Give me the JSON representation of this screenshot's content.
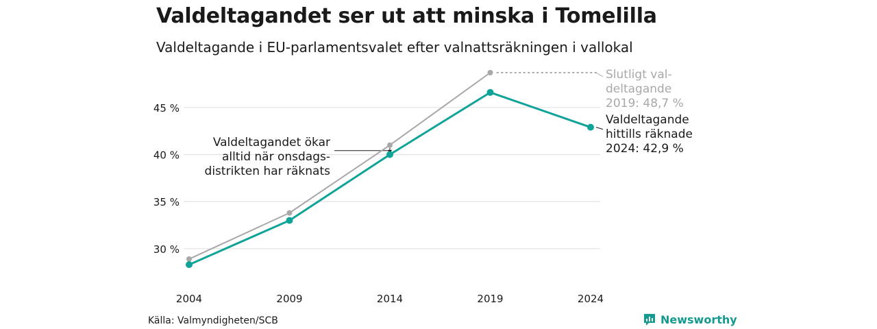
{
  "title": "Valdeltagandet ser ut att minska i Tomelilla",
  "subtitle": "Valdeltagande i EU-parlamentsvalet efter valnattsräkningen i vallokal",
  "source": "Källa: Valmyndigheten/SCB",
  "brand": "Newsworthy",
  "colors": {
    "final": "#a8a8a8",
    "counted": "#10a398",
    "grid": "#e3e3e3",
    "text": "#1a1a1a",
    "annotation_grey": "#a8a8a8"
  },
  "chart_data": {
    "type": "line",
    "x": [
      2004,
      2009,
      2014,
      2019,
      2024
    ],
    "x_tick_labels": [
      "2004",
      "2009",
      "2014",
      "2019",
      "2024"
    ],
    "y_ticks": [
      30,
      35,
      40,
      45
    ],
    "y_tick_labels": [
      "30 %",
      "35 %",
      "40 %",
      "45 %"
    ],
    "ylim": [
      27,
      48.7
    ],
    "grid": true,
    "series": [
      {
        "key": "final",
        "values": [
          28.9,
          33.8,
          41.0,
          48.7,
          null
        ]
      },
      {
        "key": "counted",
        "values": [
          28.3,
          33.0,
          40.0,
          46.6,
          42.9
        ]
      }
    ],
    "annotations": {
      "final_label": [
        "Slutligt val-",
        "deltagande",
        "2019: 48,7 %"
      ],
      "counted_label": [
        "Valdeltagande",
        "hittills räknade",
        "2024: 42,9 %"
      ],
      "note": [
        "Valdeltagandet ökar",
        "alltid när onsdags-",
        "distrikten har räknats"
      ]
    }
  }
}
